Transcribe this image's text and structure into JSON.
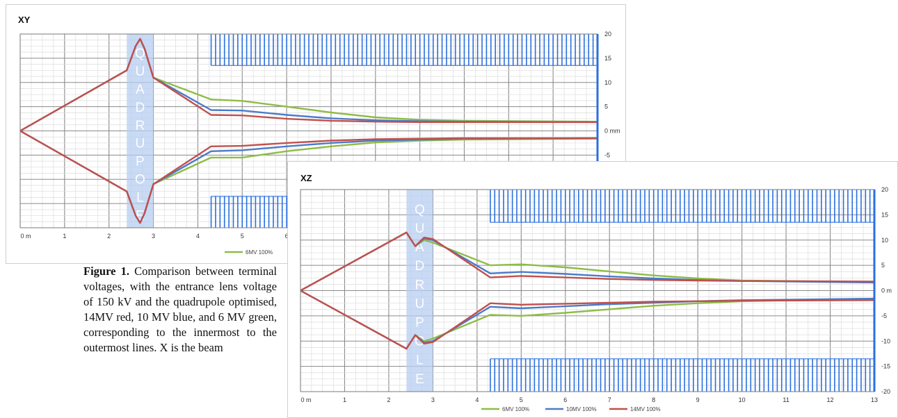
{
  "caption": {
    "label": "Figure 1.",
    "text": "Comparison between terminal voltages, with the entrance lens voltage of 150 kV and the quadrupole optimised, 14MV red, 10 MV blue, and 6 MV green, corresponding to the innermost to the outermost lines. X is the beam"
  },
  "colors": {
    "6MV": "#8fbc45",
    "10MV": "#4a7cc9",
    "14MV": "#c0504d",
    "aperture": "#2a6fe0",
    "quad_band": "#b7cdf2"
  },
  "chart_data": [
    {
      "type": "line",
      "title": "XY",
      "x_unit_label": "0 m",
      "y_unit_label": "0 mm",
      "xlim": [
        0,
        13
      ],
      "ylim": [
        -20,
        20
      ],
      "x_ticks": [
        "0 m",
        "1",
        "2",
        "3",
        "4",
        "5",
        "6"
      ],
      "y_ticks": [
        "20",
        "15",
        "10",
        "5",
        "0 mm",
        "-5"
      ],
      "y_axis_side": "right",
      "grid": true,
      "legend_position": "bottom",
      "legend_entries_visible": [
        "6MV 100%"
      ],
      "quadrupole": {
        "label": "QUADRUPOLE",
        "x_range": [
          2.4,
          3.0
        ]
      },
      "aperture": {
        "x_range": [
          4.3,
          13
        ],
        "upper_y_range": [
          13.5,
          20
        ],
        "lower_y_range": [
          -20,
          -13.5
        ]
      },
      "series": [
        {
          "name": "6MV 100%",
          "color_key": "6MV",
          "upper": [
            [
              0,
              0
            ],
            [
              2.4,
              12.5
            ],
            [
              2.6,
              17.5
            ],
            [
              2.7,
              19
            ],
            [
              2.8,
              17
            ],
            [
              3.0,
              11
            ],
            [
              4.3,
              6.5
            ],
            [
              5,
              6.2
            ],
            [
              6,
              5
            ],
            [
              7,
              3.8
            ],
            [
              8,
              2.8
            ],
            [
              9,
              2.3
            ],
            [
              10,
              2.1
            ],
            [
              13,
              1.9
            ]
          ],
          "lower": [
            [
              0,
              0
            ],
            [
              2.4,
              -12.5
            ],
            [
              2.6,
              -17.5
            ],
            [
              2.7,
              -19
            ],
            [
              2.8,
              -17
            ],
            [
              3.0,
              -11
            ],
            [
              4.3,
              -5.5
            ],
            [
              5,
              -5.5
            ],
            [
              6,
              -4.2
            ],
            [
              7,
              -3.2
            ],
            [
              8,
              -2.4
            ],
            [
              9,
              -2.0
            ],
            [
              10,
              -1.8
            ],
            [
              13,
              -1.6
            ]
          ]
        },
        {
          "name": "10MV 100%",
          "color_key": "10MV",
          "upper": [
            [
              0,
              0
            ],
            [
              2.4,
              12.5
            ],
            [
              2.6,
              17.5
            ],
            [
              2.7,
              19
            ],
            [
              2.8,
              17
            ],
            [
              3.0,
              11
            ],
            [
              4.3,
              4.3
            ],
            [
              5,
              4.2
            ],
            [
              6,
              3.3
            ],
            [
              7,
              2.6
            ],
            [
              8,
              2.2
            ],
            [
              9,
              2.0
            ],
            [
              10,
              1.9
            ],
            [
              13,
              1.8
            ]
          ],
          "lower": [
            [
              0,
              0
            ],
            [
              2.4,
              -12.5
            ],
            [
              2.6,
              -17.5
            ],
            [
              2.7,
              -19
            ],
            [
              2.8,
              -17
            ],
            [
              3.0,
              -11
            ],
            [
              4.3,
              -4.2
            ],
            [
              5,
              -4.0
            ],
            [
              6,
              -3.2
            ],
            [
              7,
              -2.5
            ],
            [
              8,
              -2.0
            ],
            [
              9,
              -1.8
            ],
            [
              10,
              -1.6
            ],
            [
              13,
              -1.5
            ]
          ]
        },
        {
          "name": "14MV 100%",
          "color_key": "14MV",
          "upper": [
            [
              0,
              0
            ],
            [
              2.4,
              12.5
            ],
            [
              2.6,
              17.5
            ],
            [
              2.7,
              19
            ],
            [
              2.8,
              17
            ],
            [
              3.0,
              11
            ],
            [
              4.3,
              3.3
            ],
            [
              5,
              3.2
            ],
            [
              6,
              2.5
            ],
            [
              7,
              2.1
            ],
            [
              8,
              1.9
            ],
            [
              9,
              1.8
            ],
            [
              10,
              1.8
            ],
            [
              13,
              1.8
            ]
          ],
          "lower": [
            [
              0,
              0
            ],
            [
              2.4,
              -12.5
            ],
            [
              2.6,
              -17.5
            ],
            [
              2.7,
              -19
            ],
            [
              2.8,
              -17
            ],
            [
              3.0,
              -11
            ],
            [
              4.3,
              -3.2
            ],
            [
              5,
              -3.1
            ],
            [
              6,
              -2.5
            ],
            [
              7,
              -2.0
            ],
            [
              8,
              -1.7
            ],
            [
              9,
              -1.6
            ],
            [
              10,
              -1.5
            ],
            [
              13,
              -1.5
            ]
          ]
        }
      ]
    },
    {
      "type": "line",
      "title": "XZ",
      "x_unit_label": "0 m",
      "y_unit_label": "0 m",
      "xlim": [
        0,
        13
      ],
      "ylim": [
        -20,
        20
      ],
      "x_ticks": [
        "0 m",
        "1",
        "2",
        "3",
        "4",
        "5",
        "6",
        "7",
        "8",
        "9",
        "10",
        "11",
        "12",
        "13"
      ],
      "y_ticks": [
        "20",
        "15",
        "10",
        "5",
        "0 m",
        "-5",
        "-10",
        "-15",
        "-20"
      ],
      "y_axis_side": "right",
      "grid": true,
      "legend_position": "bottom",
      "legend_entries_visible": [
        "6MV 100%",
        "10MV 100%",
        "14MV 100%"
      ],
      "quadrupole": {
        "label": "QUADRUPOLE",
        "x_range": [
          2.4,
          3.0
        ]
      },
      "aperture": {
        "x_range": [
          4.3,
          13
        ],
        "upper_y_range": [
          13.5,
          20
        ],
        "lower_y_range": [
          -20,
          -13.5
        ]
      },
      "series": [
        {
          "name": "6MV 100%",
          "color_key": "6MV",
          "upper": [
            [
              0,
              0
            ],
            [
              2.4,
              11.5
            ],
            [
              2.6,
              8.8
            ],
            [
              2.8,
              10
            ],
            [
              3.0,
              9.5
            ],
            [
              4.3,
              5
            ],
            [
              5,
              5.2
            ],
            [
              6,
              4.6
            ],
            [
              7,
              3.8
            ],
            [
              8,
              3.0
            ],
            [
              9,
              2.4
            ],
            [
              10,
              2.0
            ],
            [
              13,
              1.7
            ]
          ],
          "lower": [
            [
              0,
              0
            ],
            [
              2.4,
              -11.5
            ],
            [
              2.6,
              -8.8
            ],
            [
              2.8,
              -10
            ],
            [
              3.0,
              -9.5
            ],
            [
              4.3,
              -4.8
            ],
            [
              5,
              -5.0
            ],
            [
              6,
              -4.4
            ],
            [
              7,
              -3.7
            ],
            [
              8,
              -3.0
            ],
            [
              9,
              -2.5
            ],
            [
              10,
              -2.1
            ],
            [
              13,
              -1.6
            ]
          ]
        },
        {
          "name": "10MV 100%",
          "color_key": "10MV",
          "upper": [
            [
              0,
              0
            ],
            [
              2.4,
              11.5
            ],
            [
              2.6,
              8.8
            ],
            [
              2.8,
              10.3
            ],
            [
              3.0,
              10
            ],
            [
              4.3,
              3.4
            ],
            [
              5,
              3.7
            ],
            [
              6,
              3.3
            ],
            [
              7,
              2.8
            ],
            [
              8,
              2.4
            ],
            [
              9,
              2.1
            ],
            [
              10,
              1.9
            ],
            [
              13,
              1.6
            ]
          ],
          "lower": [
            [
              0,
              0
            ],
            [
              2.4,
              -11.5
            ],
            [
              2.6,
              -8.8
            ],
            [
              2.8,
              -10.3
            ],
            [
              3.0,
              -10
            ],
            [
              4.3,
              -3.2
            ],
            [
              5,
              -3.5
            ],
            [
              6,
              -3.1
            ],
            [
              7,
              -2.7
            ],
            [
              8,
              -2.4
            ],
            [
              9,
              -2.1
            ],
            [
              10,
              -1.9
            ],
            [
              13,
              -1.6
            ]
          ]
        },
        {
          "name": "14MV 100%",
          "color_key": "14MV",
          "upper": [
            [
              0,
              0
            ],
            [
              2.4,
              11.5
            ],
            [
              2.6,
              8.8
            ],
            [
              2.8,
              10.5
            ],
            [
              3.0,
              10.2
            ],
            [
              4.3,
              2.6
            ],
            [
              5,
              2.9
            ],
            [
              6,
              2.6
            ],
            [
              7,
              2.3
            ],
            [
              8,
              2.1
            ],
            [
              9,
              2.0
            ],
            [
              10,
              1.9
            ],
            [
              13,
              1.8
            ]
          ],
          "lower": [
            [
              0,
              0
            ],
            [
              2.4,
              -11.5
            ],
            [
              2.6,
              -8.8
            ],
            [
              2.8,
              -10.5
            ],
            [
              3.0,
              -10.2
            ],
            [
              4.3,
              -2.5
            ],
            [
              5,
              -2.8
            ],
            [
              6,
              -2.6
            ],
            [
              7,
              -2.4
            ],
            [
              8,
              -2.2
            ],
            [
              9,
              -2.1
            ],
            [
              10,
              -2.0
            ],
            [
              13,
              -1.9
            ]
          ]
        }
      ]
    }
  ]
}
